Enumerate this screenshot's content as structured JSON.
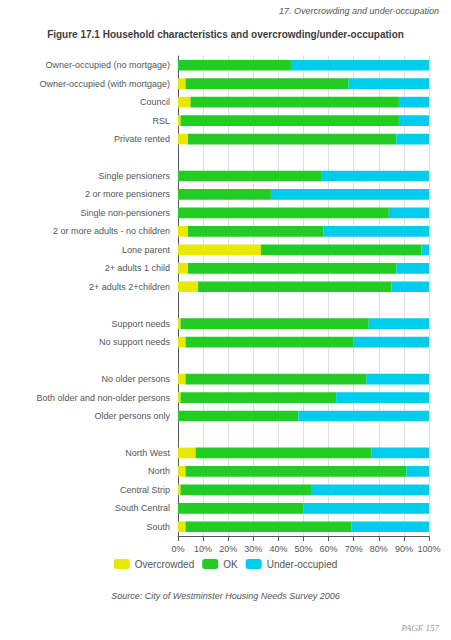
{
  "chart_data": {
    "type": "bar",
    "title": "Figure 17.1 Household characteristics and overcrowding/under-occupation",
    "annotations": [
      "17. Overcrowding and under-occupation",
      "Source: City of Westminster Housing Needs Survey 2006",
      "PAGE 157"
    ],
    "orientation": "horizontal",
    "stacked": true,
    "grid": true,
    "legend": "bottom",
    "categories": [
      "Owner-occupied (no mortgage)",
      "Owner-occupied (with mortgage)",
      "Council",
      "RSL",
      "Private rented",
      null,
      "Single pensioners",
      "2 or more pensioners",
      "Single non-pensioners",
      "2 or more adults - no children",
      "Lone parent",
      "2+ adults 1 child",
      "2+ adults 2+children",
      null,
      "Support needs",
      "No support needs",
      null,
      "No older persons",
      "Both older and non-older persons",
      "Older persons only",
      null,
      "North West",
      "North",
      "Central Strip",
      "South Central",
      "South"
    ],
    "series": [
      {
        "name": "Overcrowded",
        "color": "#e8e800",
        "values": [
          0,
          3,
          5,
          1,
          4,
          0,
          0,
          0,
          0,
          4,
          33,
          4,
          8,
          0,
          1,
          3,
          0,
          3,
          1,
          0,
          0,
          7,
          3,
          1,
          0,
          3
        ]
      },
      {
        "name": "OK",
        "color": "#22cc22",
        "values": [
          45,
          65,
          83,
          87,
          83,
          0,
          57,
          37,
          84,
          54,
          64,
          83,
          77,
          0,
          75,
          67,
          0,
          72,
          62,
          48,
          0,
          70,
          88,
          52,
          50,
          66
        ]
      },
      {
        "name": "Under-occupied",
        "color": "#00ccee",
        "values": [
          55,
          32,
          12,
          12,
          13,
          0,
          43,
          63,
          16,
          42,
          3,
          13,
          15,
          0,
          24,
          30,
          0,
          25,
          37,
          52,
          0,
          23,
          9,
          47,
          50,
          31
        ]
      }
    ],
    "xlim": [
      0,
      100
    ],
    "xticks": [
      {
        "value": 0,
        "label": "0%"
      },
      {
        "value": 10,
        "label": "10%"
      },
      {
        "value": 20,
        "label": "20%"
      },
      {
        "value": 30,
        "label": "30%"
      },
      {
        "value": 40,
        "label": "40%"
      },
      {
        "value": 50,
        "label": "50%"
      },
      {
        "value": 60,
        "label": "60%"
      },
      {
        "value": 70,
        "label": "70%"
      },
      {
        "value": 80,
        "label": "80%"
      },
      {
        "value": 90,
        "label": "90%"
      },
      {
        "value": 100,
        "label": "100%"
      }
    ]
  }
}
